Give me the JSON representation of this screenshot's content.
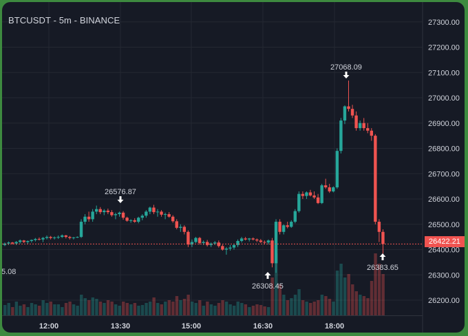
{
  "title": "BTCUSDT - 5m - BINANCE",
  "colors": {
    "background": "#161a25",
    "up": "#26a69a",
    "down": "#ef5350",
    "border": "#3d8a3f",
    "axis_text": "#d1d4dc"
  },
  "chart_data": {
    "type": "candlestick",
    "symbol": "BTCUSDT",
    "interval": "5m",
    "exchange": "BINANCE",
    "y_axis": {
      "ticks": [
        26200,
        26300,
        26400,
        26500,
        26600,
        26700,
        26800,
        26900,
        27000,
        27100,
        27200,
        27300
      ],
      "labels": [
        "26200.00",
        "26300.00",
        "26400.00",
        "26500.00",
        "26600.00",
        "26700.00",
        "26800.00",
        "26900.00",
        "27000.00",
        "27100.00",
        "27200.00",
        "27300.00"
      ],
      "position": "right"
    },
    "x_axis": {
      "ticks": [
        "12:00",
        "13:30",
        "15:00",
        "16:30",
        "18:00"
      ]
    },
    "grid": true,
    "current_price": "26422.21",
    "annotations": [
      {
        "label": "26576.87",
        "marker": "down-arrow",
        "position": "above"
      },
      {
        "label": "26308.45",
        "marker": "up-arrow",
        "position": "below"
      },
      {
        "label": "27068.09",
        "marker": "down-arrow",
        "position": "above"
      },
      {
        "label": "26383.65",
        "marker": "up-arrow",
        "position": "below"
      },
      {
        "label": "5.08",
        "marker": "none",
        "position": "left-edge"
      }
    ],
    "candles": [
      [
        26418,
        26428,
        26414,
        26424,
        0.15
      ],
      [
        26424,
        26432,
        26418,
        26428,
        0.18
      ],
      [
        26428,
        26430,
        26420,
        26424,
        0.12
      ],
      [
        26424,
        26434,
        26418,
        26430,
        0.2
      ],
      [
        26430,
        26440,
        26424,
        26436,
        0.14
      ],
      [
        26436,
        26438,
        26426,
        26430,
        0.16
      ],
      [
        26430,
        26436,
        26422,
        26434,
        0.12
      ],
      [
        26434,
        26440,
        26428,
        26438,
        0.18
      ],
      [
        26438,
        26446,
        26432,
        26442,
        0.16
      ],
      [
        26442,
        26448,
        26436,
        26440,
        0.14
      ],
      [
        26440,
        26450,
        26430,
        26446,
        0.22
      ],
      [
        26446,
        26456,
        26440,
        26450,
        0.18
      ],
      [
        26450,
        26454,
        26440,
        26446,
        0.2
      ],
      [
        26446,
        26452,
        26440,
        26448,
        0.16
      ],
      [
        26448,
        26456,
        26442,
        26450,
        0.16
      ],
      [
        26450,
        26460,
        26446,
        26456,
        0.12
      ],
      [
        26456,
        26458,
        26444,
        26450,
        0.18
      ],
      [
        26450,
        26454,
        26440,
        26446,
        0.2
      ],
      [
        26446,
        26450,
        26440,
        26448,
        0.16
      ],
      [
        26448,
        26452,
        26446,
        26450,
        0.14
      ],
      [
        26450,
        26520,
        26446,
        26510,
        0.3
      ],
      [
        26510,
        26540,
        26500,
        26530,
        0.25
      ],
      [
        26530,
        26550,
        26510,
        26520,
        0.22
      ],
      [
        26520,
        26560,
        26510,
        26550,
        0.26
      ],
      [
        26550,
        26574,
        26540,
        26560,
        0.24
      ],
      [
        26560,
        26568,
        26540,
        26548,
        0.2
      ],
      [
        26548,
        26560,
        26536,
        26554,
        0.18
      ],
      [
        26554,
        26562,
        26540,
        26548,
        0.22
      ],
      [
        26548,
        26556,
        26530,
        26536,
        0.2
      ],
      [
        26536,
        26546,
        26520,
        26540,
        0.16
      ],
      [
        26540,
        26550,
        26530,
        26546,
        0.14
      ],
      [
        26546,
        26552,
        26518,
        26526,
        0.2
      ],
      [
        26526,
        26530,
        26510,
        26514,
        0.18
      ],
      [
        26514,
        26520,
        26506,
        26516,
        0.16
      ],
      [
        26516,
        26524,
        26506,
        26510,
        0.18
      ],
      [
        26510,
        26530,
        26504,
        26526,
        0.14
      ],
      [
        26526,
        26540,
        26516,
        26534,
        0.15
      ],
      [
        26534,
        26556,
        26526,
        26550,
        0.18
      ],
      [
        26550,
        26570,
        26540,
        26566,
        0.2
      ],
      [
        26566,
        26577,
        26540,
        26548,
        0.26
      ],
      [
        26548,
        26560,
        26530,
        26550,
        0.18
      ],
      [
        26550,
        26556,
        26530,
        26538,
        0.16
      ],
      [
        26538,
        26546,
        26520,
        26540,
        0.2
      ],
      [
        26540,
        26548,
        26526,
        26530,
        0.22
      ],
      [
        26530,
        26536,
        26506,
        26512,
        0.2
      ],
      [
        26512,
        26520,
        26480,
        26486,
        0.28
      ],
      [
        26486,
        26500,
        26470,
        26490,
        0.22
      ],
      [
        26490,
        26496,
        26460,
        26470,
        0.24
      ],
      [
        26470,
        26476,
        26410,
        26420,
        0.3
      ],
      [
        26420,
        26440,
        26410,
        26430,
        0.2
      ],
      [
        26430,
        26450,
        26426,
        26446,
        0.18
      ],
      [
        26446,
        26450,
        26420,
        26426,
        0.22
      ],
      [
        26426,
        26436,
        26418,
        26430,
        0.14
      ],
      [
        26430,
        26438,
        26412,
        26418,
        0.2
      ],
      [
        26418,
        26428,
        26410,
        26424,
        0.16
      ],
      [
        26424,
        26434,
        26418,
        26428,
        0.14
      ],
      [
        26428,
        26436,
        26408,
        26414,
        0.18
      ],
      [
        26414,
        26420,
        26396,
        26400,
        0.22
      ],
      [
        26400,
        26410,
        26380,
        26404,
        0.2
      ],
      [
        26404,
        26418,
        26396,
        26408,
        0.16
      ],
      [
        26408,
        26422,
        26400,
        26418,
        0.14
      ],
      [
        26418,
        26440,
        26410,
        26434,
        0.2
      ],
      [
        26434,
        26450,
        26428,
        26444,
        0.18
      ],
      [
        26444,
        26450,
        26436,
        26440,
        0.16
      ],
      [
        26440,
        26446,
        26432,
        26444,
        0.12
      ],
      [
        26444,
        26448,
        26436,
        26440,
        0.14
      ],
      [
        26440,
        26444,
        26430,
        26436,
        0.16
      ],
      [
        26436,
        26442,
        26426,
        26430,
        0.15
      ],
      [
        26430,
        26436,
        26420,
        26428,
        0.13
      ],
      [
        26428,
        26440,
        26420,
        26436,
        0.12
      ],
      [
        26436,
        26446,
        26330,
        26346,
        0.55
      ],
      [
        26346,
        26520,
        26308,
        26510,
        0.9
      ],
      [
        26510,
        26520,
        26460,
        26470,
        0.45
      ],
      [
        26470,
        26500,
        26460,
        26496,
        0.3
      ],
      [
        26496,
        26510,
        26484,
        26490,
        0.22
      ],
      [
        26490,
        26516,
        26486,
        26510,
        0.25
      ],
      [
        26510,
        26560,
        26504,
        26552,
        0.3
      ],
      [
        26552,
        26630,
        26546,
        26620,
        0.38
      ],
      [
        26620,
        26630,
        26600,
        26612,
        0.22
      ],
      [
        26612,
        26630,
        26600,
        26626,
        0.2
      ],
      [
        26626,
        26636,
        26610,
        26614,
        0.18
      ],
      [
        26614,
        26630,
        26600,
        26606,
        0.2
      ],
      [
        26606,
        26620,
        26580,
        26584,
        0.22
      ],
      [
        26584,
        26660,
        26580,
        26654,
        0.3
      ],
      [
        26654,
        26680,
        26640,
        26646,
        0.28
      ],
      [
        26646,
        26660,
        26624,
        26630,
        0.24
      ],
      [
        26630,
        26650,
        26626,
        26646,
        0.2
      ],
      [
        26646,
        26800,
        26640,
        26790,
        0.65
      ],
      [
        26790,
        26920,
        26780,
        26910,
        0.75
      ],
      [
        26910,
        26970,
        26896,
        26966,
        0.55
      ],
      [
        26966,
        27068,
        26946,
        26956,
        0.6
      ],
      [
        26956,
        26972,
        26920,
        26930,
        0.45
      ],
      [
        26930,
        26946,
        26870,
        26880,
        0.35
      ],
      [
        26880,
        26910,
        26870,
        26900,
        0.3
      ],
      [
        26900,
        26920,
        26870,
        26880,
        0.28
      ],
      [
        26880,
        26900,
        26860,
        26870,
        0.25
      ],
      [
        26870,
        26880,
        26830,
        26850,
        0.5
      ],
      [
        26850,
        26856,
        26500,
        26510,
        0.9
      ],
      [
        26510,
        26520,
        26430,
        26470,
        0.75
      ],
      [
        26470,
        26480,
        26384,
        26422,
        0.6
      ]
    ]
  }
}
